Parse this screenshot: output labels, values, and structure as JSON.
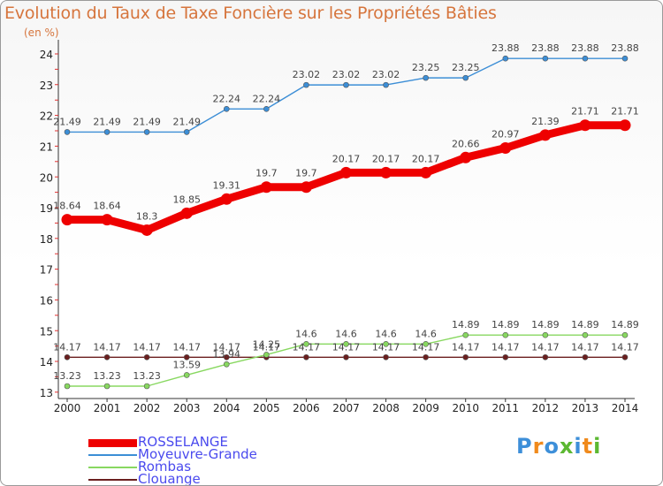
{
  "title": "Evolution du Taux de Taxe Foncière sur les Propriétés Bâties",
  "unit_label": "(en %)",
  "logo": {
    "text": "Proxiti"
  },
  "chart_data": {
    "type": "line",
    "title": "Evolution du Taux de Taxe Foncière sur les Propriétés Bâties",
    "ylabel": "(en %)",
    "xlabel": "",
    "ylim": [
      13,
      24
    ],
    "yticks": [
      13,
      14,
      15,
      16,
      17,
      18,
      19,
      20,
      21,
      22,
      23,
      24
    ],
    "x": [
      2000,
      2001,
      2002,
      2003,
      2004,
      2005,
      2006,
      2007,
      2008,
      2009,
      2010,
      2011,
      2012,
      2013,
      2014
    ],
    "grid": false,
    "legend": "bottom-left",
    "series": [
      {
        "name": "ROSSELANGE",
        "color": "#ee0000",
        "values": [
          18.64,
          18.64,
          18.3,
          18.85,
          19.31,
          19.7,
          19.7,
          20.17,
          20.17,
          20.17,
          20.66,
          20.97,
          21.39,
          21.71,
          21.71
        ]
      },
      {
        "name": "Moyeuvre-Grande",
        "color": "#3c8ed6",
        "values": [
          21.49,
          21.49,
          21.49,
          21.49,
          22.24,
          22.24,
          23.02,
          23.02,
          23.02,
          23.25,
          23.25,
          23.88,
          23.88,
          23.88,
          23.88
        ]
      },
      {
        "name": "Rombas",
        "color": "#88d860",
        "values": [
          13.23,
          13.23,
          13.23,
          13.59,
          13.94,
          14.25,
          14.6,
          14.6,
          14.6,
          14.6,
          14.89,
          14.89,
          14.89,
          14.89,
          14.89
        ]
      },
      {
        "name": "Clouange",
        "color": "#6b1f1f",
        "values": [
          14.17,
          14.17,
          14.17,
          14.17,
          14.17,
          14.17,
          14.17,
          14.17,
          14.17,
          14.17,
          14.17,
          14.17,
          14.17,
          14.17,
          14.17
        ]
      }
    ]
  }
}
